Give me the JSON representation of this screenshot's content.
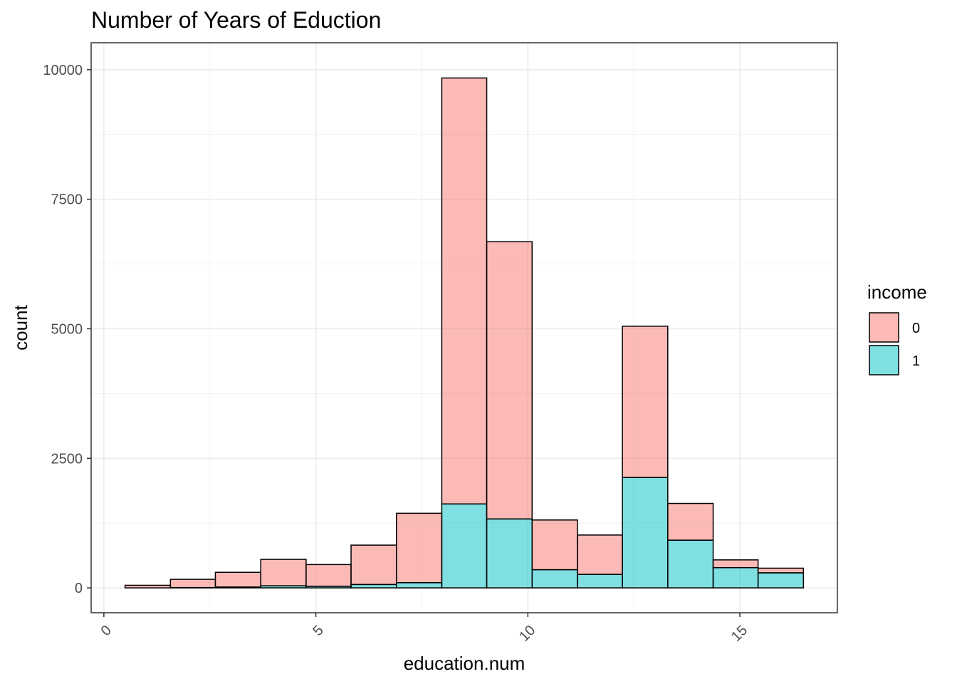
{
  "chart_data": {
    "type": "bar",
    "subtype": "stacked-histogram",
    "title": "Number of Years of Eduction",
    "xlabel": "education.num",
    "ylabel": "count",
    "xlim": [
      -0.3,
      17.3
    ],
    "ylim": [
      -480,
      10520
    ],
    "x_ticks": [
      0,
      5,
      10,
      15
    ],
    "x_tick_labels": [
      "0",
      "5",
      "10",
      "15"
    ],
    "x_tick_rotation_deg": -45,
    "y_ticks": [
      0,
      2500,
      5000,
      7500,
      10000
    ],
    "y_tick_labels": [
      "0",
      "2500",
      "5000",
      "7500",
      "10000"
    ],
    "grid": true,
    "legend": {
      "title": "income",
      "position": "right"
    },
    "bins": [
      {
        "x_start": 0.5,
        "x_end": 1.57
      },
      {
        "x_start": 1.57,
        "x_end": 2.63
      },
      {
        "x_start": 2.63,
        "x_end": 3.7
      },
      {
        "x_start": 3.7,
        "x_end": 4.77
      },
      {
        "x_start": 4.77,
        "x_end": 5.83
      },
      {
        "x_start": 5.83,
        "x_end": 6.9
      },
      {
        "x_start": 6.9,
        "x_end": 7.97
      },
      {
        "x_start": 7.97,
        "x_end": 9.03
      },
      {
        "x_start": 9.03,
        "x_end": 10.1
      },
      {
        "x_start": 10.1,
        "x_end": 11.17
      },
      {
        "x_start": 11.17,
        "x_end": 12.23
      },
      {
        "x_start": 12.23,
        "x_end": 13.3
      },
      {
        "x_start": 13.3,
        "x_end": 14.37
      },
      {
        "x_start": 14.37,
        "x_end": 15.43
      },
      {
        "x_start": 15.43,
        "x_end": 16.5
      }
    ],
    "series": [
      {
        "name": "0",
        "color": "#F8766D",
        "values": [
          50,
          160,
          285,
          510,
          420,
          760,
          1340,
          8220,
          5350,
          960,
          760,
          2920,
          710,
          150,
          90
        ]
      },
      {
        "name": "1",
        "color": "#00BFC4",
        "values": [
          0,
          5,
          15,
          40,
          30,
          65,
          100,
          1620,
          1330,
          350,
          260,
          2130,
          920,
          390,
          290
        ]
      }
    ],
    "fill_opacity": 0.5
  }
}
